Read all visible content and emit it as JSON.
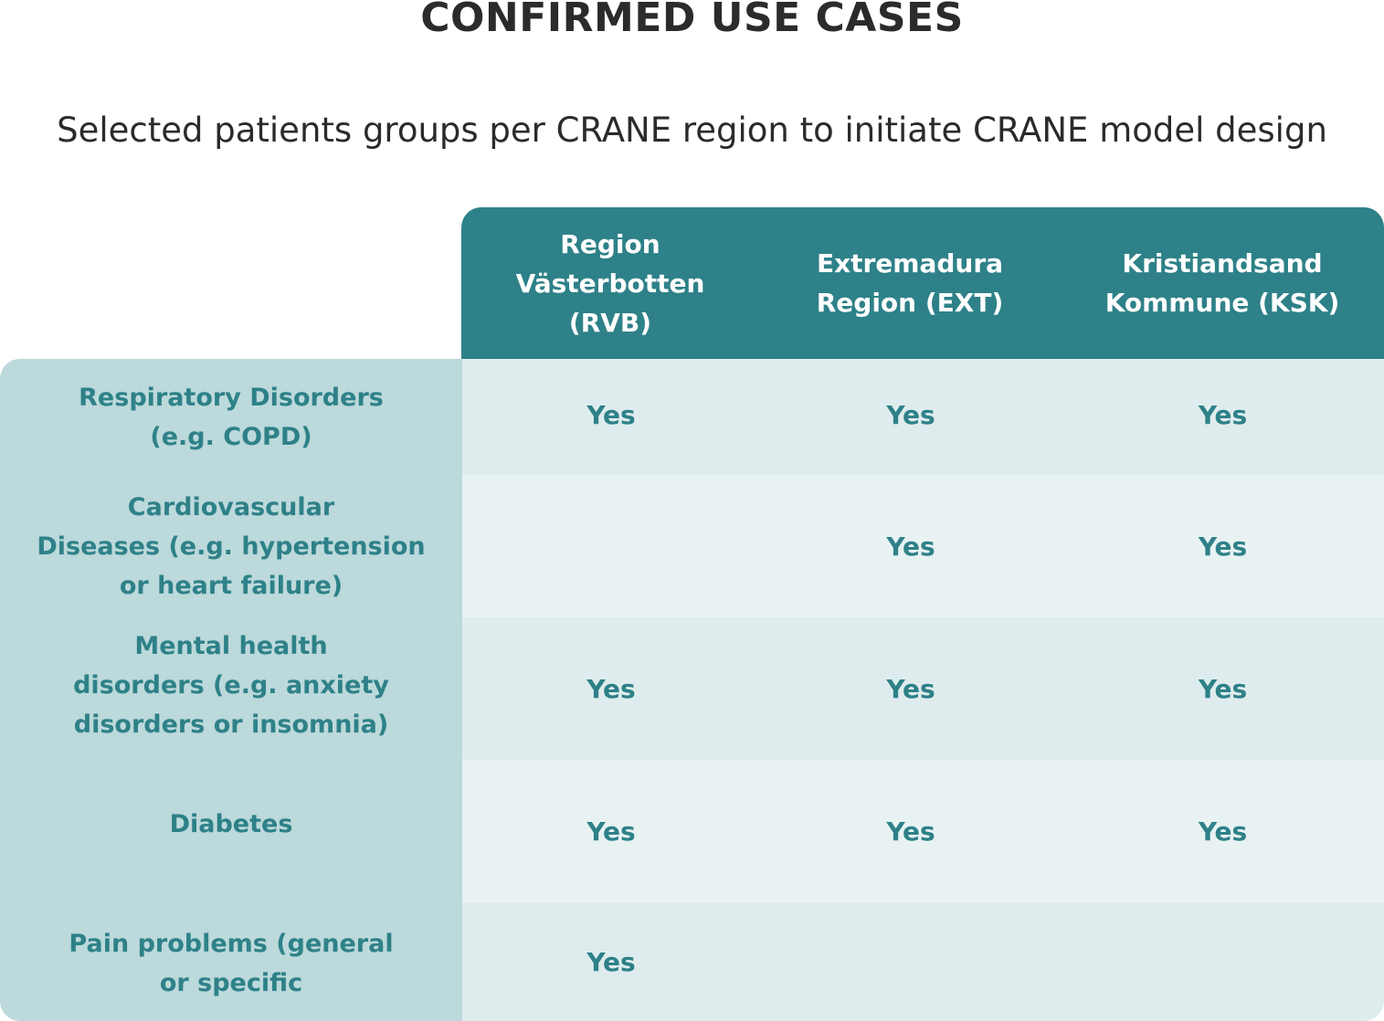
{
  "title": "CONFIRMED USE CASES",
  "subtitle": "Selected patients groups per CRANE region to initiate CRANE model design",
  "table": {
    "columns": [
      [
        "Region",
        "Västerbotten",
        "(RVB)"
      ],
      [
        "Extremadura",
        "Region (EXT)"
      ],
      [
        "Kristiandsand",
        "Kommune (KSK)"
      ]
    ],
    "rows": [
      {
        "label": [
          "Respiratory Disorders",
          "(e.g. COPD)"
        ],
        "values": [
          "Yes",
          "Yes",
          "Yes"
        ]
      },
      {
        "label": [
          "Cardiovascular",
          "Diseases (e.g. hypertension",
          "or heart failure)"
        ],
        "values": [
          "",
          "Yes",
          "Yes"
        ]
      },
      {
        "label": [
          "Mental health",
          "disorders (e.g. anxiety",
          "disorders or insomnia)"
        ],
        "values": [
          "Yes",
          "Yes",
          "Yes"
        ]
      },
      {
        "label": [
          "Diabetes"
        ],
        "values": [
          "Yes",
          "Yes",
          "Yes"
        ]
      },
      {
        "label": [
          "Pain problems (general",
          "or specific"
        ],
        "values": [
          "Yes",
          "",
          ""
        ]
      }
    ]
  },
  "colors": {
    "header_bg": "#2e8188",
    "label_column_bg": "#bcd9db",
    "row_bg_a": "#dfecee",
    "row_bg_b": "#e8f2f3",
    "accent_text": "#2e8188",
    "title_text": "#2b2b2b"
  }
}
